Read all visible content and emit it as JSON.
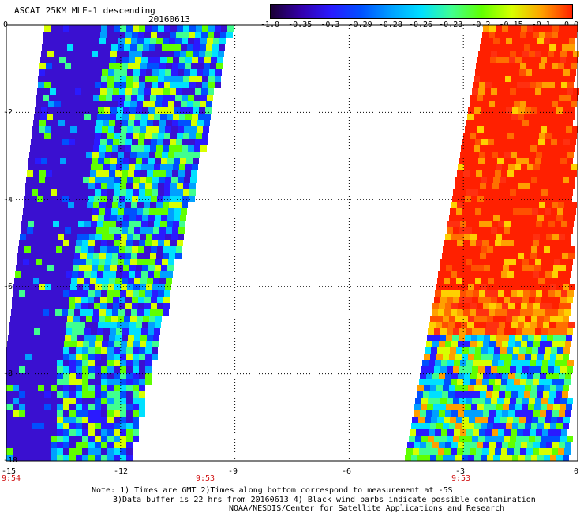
{
  "title": "ASCAT 25KM MLE-1 descending",
  "date": "20160613",
  "colorbar": {
    "labels": [
      "-1.0",
      "-0.35",
      "-0.3",
      "-0.29",
      "-0.28",
      "-0.26",
      "-0.23",
      "-0.2",
      "-0.15",
      "-0.1",
      "0.0"
    ],
    "colors": [
      "#1a0033",
      "#3300aa",
      "#2a1aff",
      "#0050ff",
      "#00a0ff",
      "#00e0ff",
      "#40ff90",
      "#60ff00",
      "#d8ff00",
      "#ffa000",
      "#ff2000"
    ]
  },
  "map": {
    "x_ticks": [
      "-15",
      "-12",
      "-9",
      "-6",
      "-3",
      "0"
    ],
    "y_ticks": [
      "0",
      "-2",
      "-4",
      "-6",
      "-8",
      "-10"
    ],
    "lon_range": [
      -15,
      0
    ],
    "lat_range": [
      -10,
      0
    ],
    "time_labels": [
      "9:54",
      "9:53",
      "9:53"
    ],
    "grid": true
  },
  "notes": {
    "line1": "Note: 1) Times are GMT 2)Times along bottom correspond to measurement at -5S",
    "line2": "3)Data buffer is 22 hrs from 20160613 4) Black wind barbs indicate possible contamination",
    "line3": "NOAA/NESDIS/Center for Satellite Applications and Research"
  }
}
